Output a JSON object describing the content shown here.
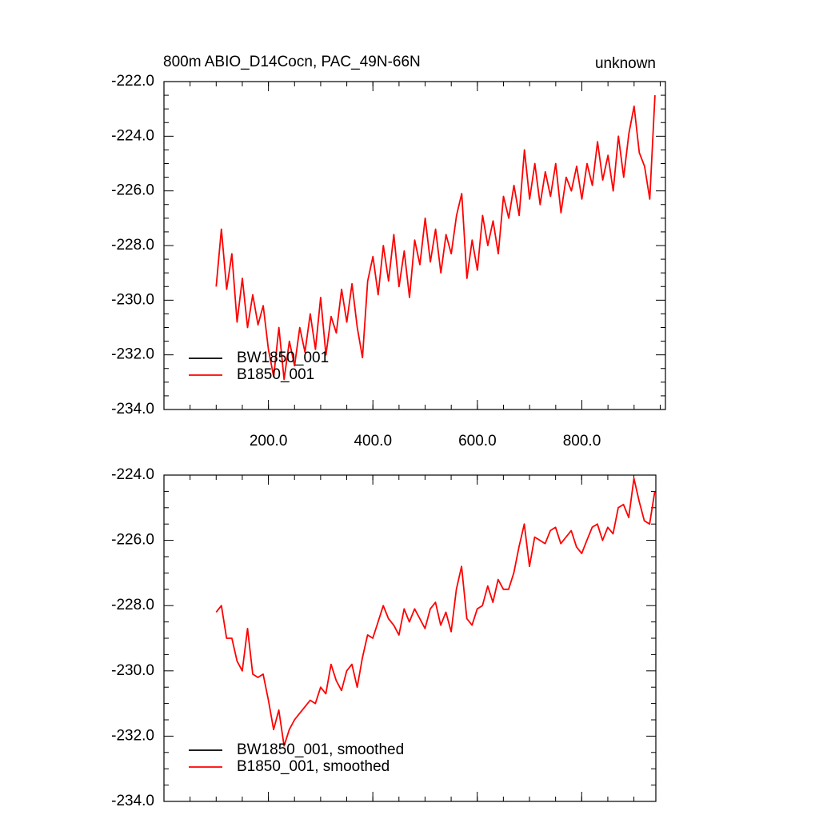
{
  "chart_data": [
    {
      "type": "line",
      "title": "800m ABIO_D14Cocn, PAC_49N-66N",
      "title_right": "unknown",
      "x": [
        100,
        110,
        120,
        130,
        140,
        150,
        160,
        170,
        180,
        190,
        200,
        210,
        220,
        230,
        240,
        250,
        260,
        270,
        280,
        290,
        300,
        310,
        320,
        330,
        340,
        350,
        360,
        370,
        380,
        390,
        400,
        410,
        420,
        430,
        440,
        450,
        460,
        470,
        480,
        490,
        500,
        510,
        520,
        530,
        540,
        550,
        560,
        570,
        580,
        590,
        600,
        610,
        620,
        630,
        640,
        650,
        660,
        670,
        680,
        690,
        700,
        710,
        720,
        730,
        740,
        750,
        760,
        770,
        780,
        790,
        800,
        810,
        820,
        830,
        840,
        850,
        860,
        870,
        880,
        890,
        900,
        910,
        920,
        930,
        940
      ],
      "series": [
        {
          "name": "BW1850_001",
          "color": "#000000",
          "values": [
            null,
            null,
            null,
            null,
            null,
            null,
            null,
            null,
            null,
            null,
            null,
            null,
            null,
            null,
            null,
            null,
            null,
            null,
            null,
            null,
            null,
            null,
            null,
            null,
            null,
            null,
            null,
            null,
            null,
            null,
            null,
            null,
            null,
            null,
            null,
            null,
            null,
            null,
            null,
            null,
            null,
            null,
            null,
            null,
            null,
            null,
            null,
            null,
            null,
            null,
            null,
            null,
            null,
            null,
            null,
            null,
            null,
            null,
            null,
            null,
            null,
            null,
            null,
            null,
            null,
            null,
            null,
            null,
            null,
            null,
            null,
            null,
            null,
            null,
            null,
            null,
            null,
            null,
            null,
            null,
            null,
            null,
            null,
            null,
            null
          ]
        },
        {
          "name": "B1850_001",
          "color": "#ff0000",
          "values": [
            -229.5,
            -227.4,
            -229.6,
            -228.3,
            -230.8,
            -229.2,
            -231.0,
            -229.8,
            -230.9,
            -230.2,
            -231.8,
            -232.8,
            -231.0,
            -232.9,
            -231.5,
            -232.4,
            -231.0,
            -231.9,
            -230.5,
            -231.8,
            -229.9,
            -232.0,
            -230.6,
            -231.2,
            -229.6,
            -230.8,
            -229.4,
            -231.0,
            -232.1,
            -229.3,
            -228.4,
            -229.8,
            -228.0,
            -229.3,
            -227.6,
            -229.5,
            -228.2,
            -229.9,
            -227.8,
            -228.7,
            -227.0,
            -228.6,
            -227.4,
            -229.0,
            -227.6,
            -228.3,
            -226.9,
            -226.1,
            -229.2,
            -227.8,
            -228.9,
            -226.9,
            -228.0,
            -227.1,
            -228.3,
            -226.2,
            -227.0,
            -225.8,
            -226.9,
            -224.5,
            -226.3,
            -225.0,
            -226.5,
            -225.3,
            -226.2,
            -225.0,
            -226.8,
            -225.5,
            -226.0,
            -225.1,
            -226.3,
            -225.0,
            -225.8,
            -224.2,
            -225.6,
            -224.7,
            -226.0,
            -224.0,
            -225.5,
            -223.9,
            -222.9,
            -224.6,
            -225.1,
            -226.3,
            -222.5
          ]
        }
      ],
      "xlim": [
        0,
        960
      ],
      "xticks": [
        {
          "value": 200,
          "label": "200.0"
        },
        {
          "value": 400,
          "label": "400.0"
        },
        {
          "value": 600,
          "label": "600.0"
        },
        {
          "value": 800,
          "label": "800.0"
        }
      ],
      "ylim": [
        -234,
        -222
      ],
      "yticks": [
        {
          "value": -234,
          "label": "-234.0"
        },
        {
          "value": -232,
          "label": "-232.0"
        },
        {
          "value": -230,
          "label": "-230.0"
        },
        {
          "value": -228,
          "label": "-228.0"
        },
        {
          "value": -226,
          "label": "-226.0"
        },
        {
          "value": -224,
          "label": "-224.0"
        },
        {
          "value": -222,
          "label": "-222.0"
        }
      ],
      "legend": "lower left"
    },
    {
      "type": "line",
      "x": [
        100,
        110,
        120,
        130,
        140,
        150,
        160,
        170,
        180,
        190,
        200,
        210,
        220,
        230,
        240,
        250,
        260,
        270,
        280,
        290,
        300,
        310,
        320,
        330,
        340,
        350,
        360,
        370,
        380,
        390,
        400,
        410,
        420,
        430,
        440,
        450,
        460,
        470,
        480,
        490,
        500,
        510,
        520,
        530,
        540,
        550,
        560,
        570,
        580,
        590,
        600,
        610,
        620,
        630,
        640,
        650,
        660,
        670,
        680,
        690,
        700,
        710,
        720,
        730,
        740,
        750,
        760,
        770,
        780,
        790,
        800,
        810,
        820,
        830,
        840,
        850,
        860,
        870,
        880,
        890,
        900,
        910,
        920,
        930,
        940
      ],
      "series": [
        {
          "name": "BW1850_001, smoothed",
          "color": "#000000",
          "values": [
            null,
            null,
            null,
            null,
            null,
            null,
            null,
            null,
            null,
            null,
            null,
            null,
            null,
            null,
            null,
            null,
            null,
            null,
            null,
            null,
            null,
            null,
            null,
            null,
            null,
            null,
            null,
            null,
            null,
            null,
            null,
            null,
            null,
            null,
            null,
            null,
            null,
            null,
            null,
            null,
            null,
            null,
            null,
            null,
            null,
            null,
            null,
            null,
            null,
            null,
            null,
            null,
            null,
            null,
            null,
            null,
            null,
            null,
            null,
            null,
            null,
            null,
            null,
            null,
            null,
            null,
            null,
            null,
            null,
            null,
            null,
            null,
            null,
            null,
            null,
            null,
            null,
            null,
            null,
            null,
            null,
            null,
            null,
            null,
            null
          ]
        },
        {
          "name": "B1850_001, smoothed",
          "color": "#ff0000",
          "values": [
            -228.2,
            -228.0,
            -229.0,
            -229.0,
            -229.7,
            -230.0,
            -228.7,
            -230.1,
            -230.2,
            -230.1,
            -230.9,
            -231.8,
            -231.2,
            -232.3,
            -231.8,
            -231.5,
            -231.3,
            -231.1,
            -230.9,
            -231.0,
            -230.5,
            -230.7,
            -229.8,
            -230.3,
            -230.6,
            -230.0,
            -229.8,
            -230.5,
            -229.6,
            -228.9,
            -229.0,
            -228.5,
            -228.0,
            -228.4,
            -228.6,
            -228.9,
            -228.1,
            -228.5,
            -228.1,
            -228.4,
            -228.7,
            -228.1,
            -227.9,
            -228.6,
            -228.2,
            -228.8,
            -227.5,
            -226.8,
            -228.4,
            -228.6,
            -228.1,
            -228.0,
            -227.4,
            -227.9,
            -227.2,
            -227.5,
            -227.5,
            -227.0,
            -226.2,
            -225.5,
            -226.8,
            -225.9,
            -226.0,
            -226.1,
            -225.7,
            -225.6,
            -226.1,
            -225.9,
            -225.7,
            -226.2,
            -226.4,
            -226.0,
            -225.6,
            -225.5,
            -226.0,
            -225.6,
            -225.8,
            -225.0,
            -224.9,
            -225.3,
            -224.1,
            -224.8,
            -225.4,
            -225.5,
            -224.5
          ]
        }
      ],
      "xlim": [
        0,
        942
      ],
      "xticks": [
        200,
        400,
        600,
        800
      ],
      "ylim": [
        -234,
        -224
      ],
      "yticks": [
        {
          "value": -234,
          "label": "-234.0"
        },
        {
          "value": -232,
          "label": "-232.0"
        },
        {
          "value": -230,
          "label": "-230.0"
        },
        {
          "value": -228,
          "label": "-228.0"
        },
        {
          "value": -226,
          "label": "-226.0"
        },
        {
          "value": -224,
          "label": "-224.0"
        }
      ],
      "legend": "lower left"
    }
  ]
}
